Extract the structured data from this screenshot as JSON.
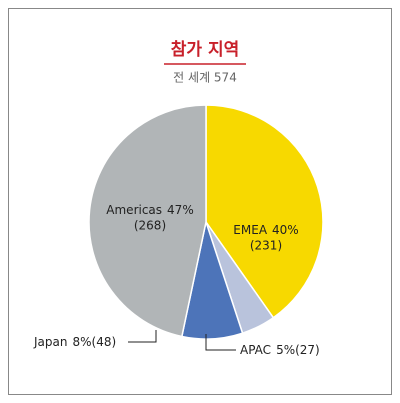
{
  "chart_data": {
    "type": "pie",
    "title": "참가 지역",
    "subtitle": "전 세계 574",
    "categories": [
      "EMEA",
      "APAC",
      "Japan",
      "Americas"
    ],
    "values": [
      231,
      27,
      48,
      268
    ],
    "value_labels": [
      "(231)",
      "(27)",
      "(48)",
      "(268)"
    ],
    "percents": [
      {
        "value": 40,
        "label": "40%"
      },
      {
        "value": 5,
        "label": "5%"
      },
      {
        "value": 8,
        "label": "8%"
      },
      {
        "value": 47,
        "label": "47%"
      }
    ],
    "colors": [
      "#f7d900",
      "#b9c3dc",
      "#4d74b9",
      "#b1b5b7"
    ]
  }
}
